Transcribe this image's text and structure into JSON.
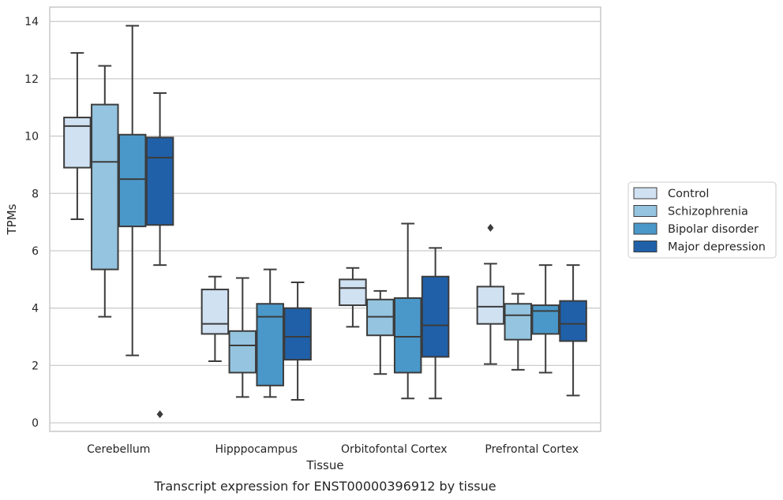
{
  "chart_data": {
    "type": "boxplot",
    "title": "",
    "caption": "Transcript expression for ENST00000396912 by tissue",
    "xlabel": "Tissue",
    "ylabel": "TPMs",
    "ylim": [
      -0.3,
      14.5
    ],
    "yticks": [
      0,
      2,
      4,
      6,
      8,
      10,
      12,
      14
    ],
    "grid": "horizontal",
    "legend_position": "right",
    "categories": [
      "Cerebellum",
      "Hipppocampus",
      "Orbitofontal Cortex",
      "Prefrontal Cortex"
    ],
    "series": [
      {
        "name": "Control",
        "color": "#d0e1f2",
        "boxes": [
          {
            "whisker_low": 7.1,
            "q1": 8.9,
            "median": 10.35,
            "q3": 10.65,
            "whisker_high": 12.9,
            "outliers": []
          },
          {
            "whisker_low": 2.15,
            "q1": 3.1,
            "median": 3.45,
            "q3": 4.65,
            "whisker_high": 5.1,
            "outliers": []
          },
          {
            "whisker_low": 3.35,
            "q1": 4.1,
            "median": 4.7,
            "q3": 5.0,
            "whisker_high": 5.4,
            "outliers": []
          },
          {
            "whisker_low": 2.05,
            "q1": 3.45,
            "median": 4.05,
            "q3": 4.75,
            "whisker_high": 5.55,
            "outliers": [
              6.8
            ]
          }
        ]
      },
      {
        "name": "Schizophrenia",
        "color": "#94c4df",
        "boxes": [
          {
            "whisker_low": 3.7,
            "q1": 5.35,
            "median": 9.1,
            "q3": 11.1,
            "whisker_high": 12.45,
            "outliers": []
          },
          {
            "whisker_low": 0.9,
            "q1": 1.75,
            "median": 2.7,
            "q3": 3.2,
            "whisker_high": 5.05,
            "outliers": []
          },
          {
            "whisker_low": 1.7,
            "q1": 3.05,
            "median": 3.7,
            "q3": 4.3,
            "whisker_high": 4.6,
            "outliers": []
          },
          {
            "whisker_low": 1.85,
            "q1": 2.9,
            "median": 3.75,
            "q3": 4.15,
            "whisker_high": 4.5,
            "outliers": []
          }
        ]
      },
      {
        "name": "Bipolar disorder",
        "color": "#4a98c9",
        "boxes": [
          {
            "whisker_low": 2.35,
            "q1": 6.85,
            "median": 8.5,
            "q3": 10.05,
            "whisker_high": 13.85,
            "outliers": []
          },
          {
            "whisker_low": 0.9,
            "q1": 1.3,
            "median": 3.7,
            "q3": 4.15,
            "whisker_high": 5.35,
            "outliers": []
          },
          {
            "whisker_low": 0.85,
            "q1": 1.75,
            "median": 3.0,
            "q3": 4.35,
            "whisker_high": 6.95,
            "outliers": []
          },
          {
            "whisker_low": 1.75,
            "q1": 3.1,
            "median": 3.9,
            "q3": 4.1,
            "whisker_high": 5.5,
            "outliers": []
          }
        ]
      },
      {
        "name": "Major depression",
        "color": "#2060a8",
        "boxes": [
          {
            "whisker_low": 5.5,
            "q1": 6.9,
            "median": 9.25,
            "q3": 9.95,
            "whisker_high": 11.5,
            "outliers": [
              0.3
            ]
          },
          {
            "whisker_low": 0.8,
            "q1": 2.2,
            "median": 3.0,
            "q3": 4.0,
            "whisker_high": 4.9,
            "outliers": []
          },
          {
            "whisker_low": 0.85,
            "q1": 2.3,
            "median": 3.4,
            "q3": 5.1,
            "whisker_high": 6.1,
            "outliers": []
          },
          {
            "whisker_low": 0.95,
            "q1": 2.85,
            "median": 3.45,
            "q3": 4.25,
            "whisker_high": 5.5,
            "outliers": []
          }
        ]
      }
    ]
  }
}
